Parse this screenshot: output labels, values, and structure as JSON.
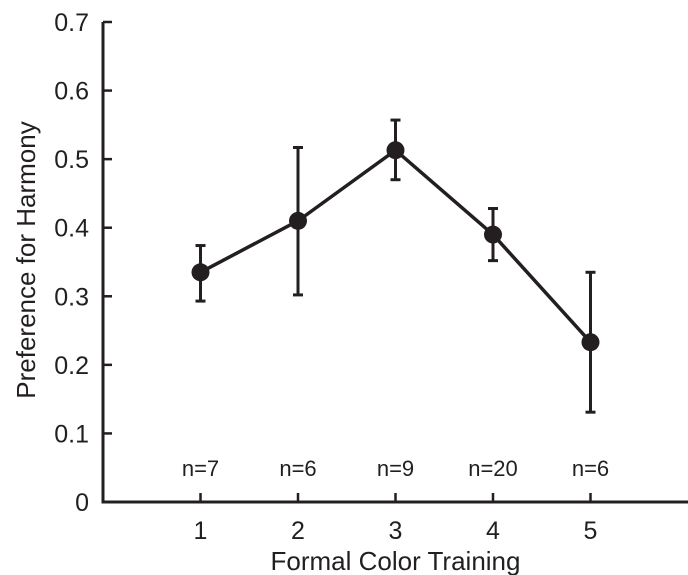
{
  "chart_data": {
    "type": "line",
    "title": "",
    "xlabel": "Formal Color Training",
    "ylabel": "Preference for Harmony",
    "xlim": [
      0,
      6
    ],
    "ylim": [
      0,
      0.7
    ],
    "x_ticks": [
      1,
      2,
      3,
      4,
      5
    ],
    "x_tick_labels": [
      "1",
      "2",
      "3",
      "4",
      "5"
    ],
    "y_ticks": [
      0,
      0.1,
      0.2,
      0.3,
      0.4,
      0.5,
      0.6,
      0.7
    ],
    "y_tick_labels": [
      "0",
      "0.1",
      "0.2",
      "0.3",
      "0.4",
      "0.5",
      "0.6",
      "0.7"
    ],
    "grid": false,
    "legend": "none",
    "series": [
      {
        "x": [
          1,
          2,
          3,
          4,
          5
        ],
        "y": [
          0.335,
          0.41,
          0.513,
          0.39,
          0.233
        ],
        "err_low": [
          0.293,
          0.302,
          0.47,
          0.352,
          0.131
        ],
        "err_high": [
          0.374,
          0.517,
          0.557,
          0.428,
          0.335
        ],
        "n_labels": [
          "n=7",
          "n=6",
          "n=9",
          "n=20",
          "n=6"
        ],
        "color": "#231f20"
      }
    ]
  }
}
